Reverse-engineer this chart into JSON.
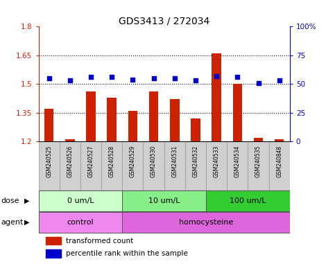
{
  "title": "GDS3413 / 272034",
  "samples": [
    "GSM240525",
    "GSM240526",
    "GSM240527",
    "GSM240528",
    "GSM240529",
    "GSM240530",
    "GSM240531",
    "GSM240532",
    "GSM240533",
    "GSM240534",
    "GSM240535",
    "GSM240848"
  ],
  "transformed_count": [
    1.37,
    1.21,
    1.46,
    1.43,
    1.36,
    1.46,
    1.42,
    1.32,
    1.66,
    1.5,
    1.22,
    1.21
  ],
  "percentile_rank": [
    55,
    53,
    56,
    56,
    54,
    55,
    55,
    53,
    57,
    56,
    51,
    53
  ],
  "bar_color": "#cc2200",
  "dot_color": "#0000cc",
  "ylim_left": [
    1.2,
    1.8
  ],
  "ylim_right": [
    0,
    100
  ],
  "yticks_left": [
    1.2,
    1.35,
    1.5,
    1.65,
    1.8
  ],
  "ytick_labels_left": [
    "1.2",
    "1.35",
    "1.5",
    "1.65",
    "1.8"
  ],
  "yticks_right": [
    0,
    25,
    50,
    75,
    100
  ],
  "ytick_labels_right": [
    "0",
    "25",
    "50",
    "75",
    "100%"
  ],
  "hlines": [
    1.35,
    1.5,
    1.65
  ],
  "dose_groups": [
    {
      "label": "0 um/L",
      "start": 0,
      "end": 4,
      "color": "#ccffcc"
    },
    {
      "label": "10 um/L",
      "start": 4,
      "end": 8,
      "color": "#88ee88"
    },
    {
      "label": "100 um/L",
      "start": 8,
      "end": 12,
      "color": "#33cc33"
    }
  ],
  "agent_groups": [
    {
      "label": "control",
      "start": 0,
      "end": 4,
      "color": "#ee88ee"
    },
    {
      "label": "homocysteine",
      "start": 4,
      "end": 12,
      "color": "#dd66dd"
    }
  ],
  "dose_label": "dose",
  "agent_label": "agent",
  "legend_bar_label": "transformed count",
  "legend_dot_label": "percentile rank within the sample",
  "sample_box_color": "#d0d0d0",
  "sample_box_edge": "#999999",
  "title_fontsize": 10,
  "tick_fontsize": 7.5,
  "sample_fontsize": 5.5,
  "group_fontsize": 8,
  "legend_fontsize": 7.5
}
